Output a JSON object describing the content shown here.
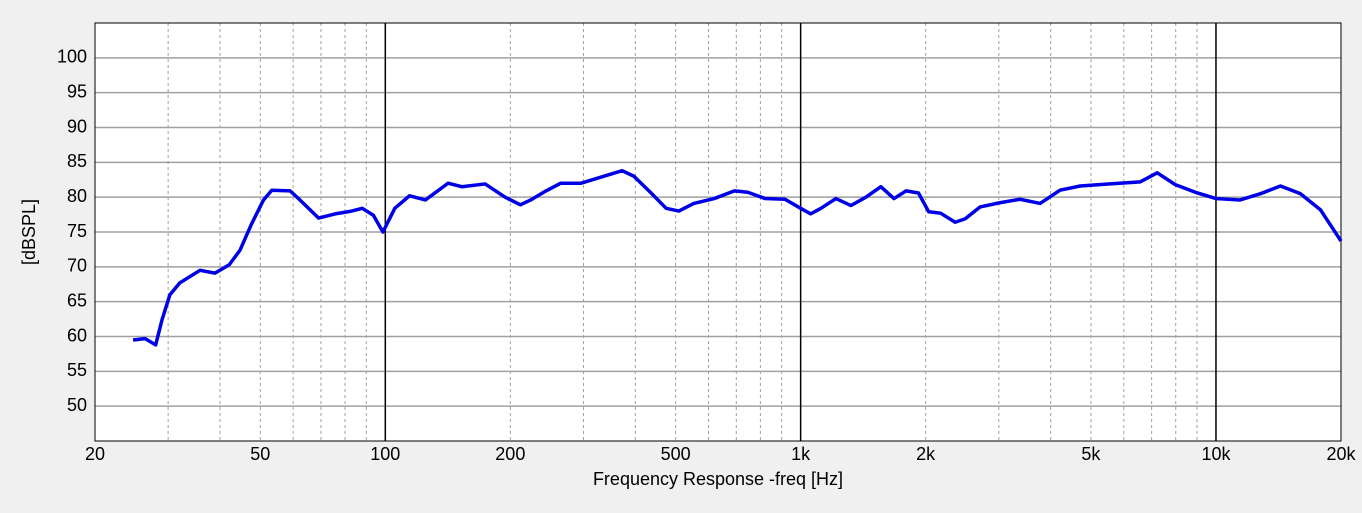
{
  "chart_data": {
    "type": "line",
    "x_label": "Frequency Response -freq [Hz]",
    "y_label": "[dBSPL]",
    "x_scale": "log",
    "grid": true,
    "xlim": [
      20,
      20000
    ],
    "ylim": [
      45,
      105
    ],
    "xticks": [
      20,
      50,
      100,
      200,
      500,
      {
        "value": 1000,
        "label": "1k"
      },
      {
        "value": 2000,
        "label": "2k"
      },
      {
        "value": 5000,
        "label": "5k"
      },
      {
        "value": 10000,
        "label": "10k"
      },
      {
        "value": 20000,
        "label": "20k"
      }
    ],
    "x_minor_gridlines": [
      30,
      40,
      60,
      70,
      80,
      90,
      300,
      400,
      600,
      700,
      800,
      900,
      3000,
      4000,
      6000,
      7000,
      8000,
      9000
    ],
    "yticks": [
      50,
      55,
      60,
      65,
      70,
      75,
      80,
      85,
      90,
      95,
      100
    ],
    "series": [
      {
        "color": "#0000e6",
        "x": [
          24.7,
          26.4,
          28.0,
          29.0,
          30.3,
          32.0,
          35.8,
          38.9,
          42.1,
          44.7,
          47.5,
          50.9,
          53.3,
          59.0,
          62.3,
          69.1,
          75.7,
          82.9,
          88.0,
          93.6,
          98.7,
          105.4,
          114.4,
          124.9,
          141.6,
          152.8,
          173.9,
          194.3,
          211.5,
          223.9,
          243.7,
          264.5,
          296.0,
          331.7,
          371.6,
          396.8,
          434.6,
          474.5,
          509.0,
          553.0,
          619.4,
          692.6,
          745.8,
          821.5,
          917.0,
          1000,
          1057,
          1119,
          1216,
          1322,
          1436,
          1560,
          1678,
          1794,
          1922,
          2034,
          2173,
          2355,
          2491,
          2706,
          3017,
          3373,
          3772,
          4212,
          4710,
          5560,
          6570,
          7220,
          7980,
          8920,
          10000,
          11430,
          12800,
          14300,
          15960,
          17840,
          20000
        ],
        "values": [
          59.5,
          59.7,
          58.8,
          62.4,
          66,
          67.7,
          69.5,
          69.1,
          70.3,
          72.4,
          76,
          79.6,
          81,
          80.9,
          79.6,
          77,
          77.6,
          78,
          78.4,
          77.4,
          75,
          78.4,
          80.2,
          79.6,
          82,
          81.5,
          81.9,
          80,
          78.9,
          79.6,
          80.9,
          82,
          82,
          82.9,
          83.8,
          83,
          80.7,
          78.4,
          78,
          79.1,
          79.8,
          80.9,
          80.7,
          79.8,
          79.7,
          78.4,
          77.6,
          78.4,
          79.8,
          78.8,
          80,
          81.5,
          79.8,
          80.9,
          80.6,
          77.9,
          77.7,
          76.4,
          76.9,
          78.6,
          79.2,
          79.7,
          79.1,
          81,
          81.6,
          81.9,
          82.2,
          83.5,
          81.8,
          80.7,
          79.8,
          79.6,
          80.5,
          81.6,
          80.5,
          78.2,
          73.7
        ]
      }
    ]
  }
}
